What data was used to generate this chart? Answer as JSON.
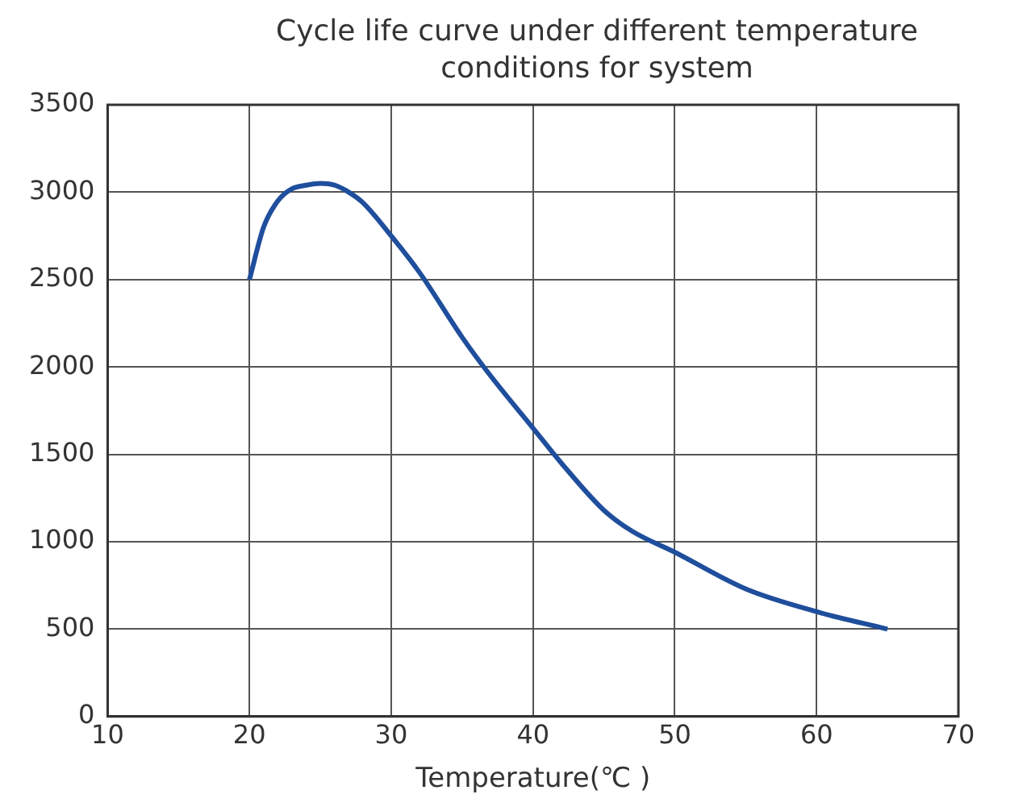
{
  "chart_data": {
    "type": "line",
    "title": "Cycle life curve under different temperature conditions for system",
    "xlabel": "Temperature(℃ )",
    "x": [
      20,
      21,
      22,
      23,
      24,
      25,
      26,
      27,
      28,
      30,
      32,
      35,
      37,
      40,
      42,
      45,
      47,
      50,
      55,
      60,
      65
    ],
    "series": [
      {
        "color": "#1f4e9c",
        "values": [
          2500,
          2800,
          2950,
          3020,
          3040,
          3050,
          3040,
          3000,
          2940,
          2750,
          2540,
          2170,
          1950,
          1650,
          1450,
          1180,
          1060,
          940,
          730,
          600,
          500
        ]
      }
    ],
    "xlim": [
      10,
      70
    ],
    "xticks": [
      10,
      20,
      30,
      40,
      50,
      60,
      70
    ],
    "ylim": [
      0,
      3500
    ],
    "yticks": [
      0,
      500,
      1000,
      1500,
      2000,
      2500,
      3000,
      3500
    ],
    "grid": true,
    "legend": false,
    "marker": "none",
    "line_style": "solid"
  }
}
